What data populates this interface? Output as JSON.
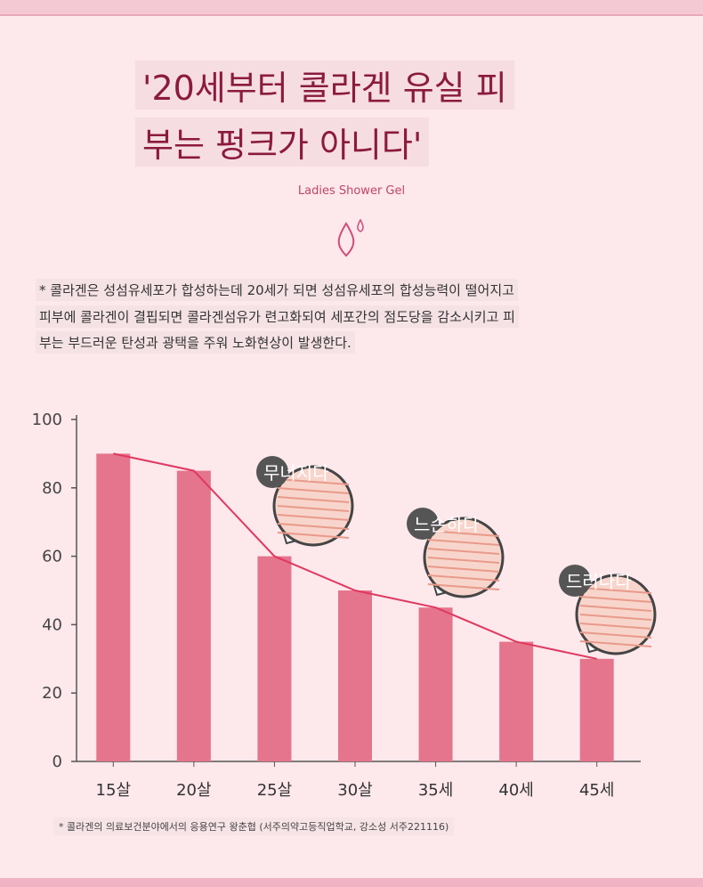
{
  "header": {
    "title_lines": [
      "'20세부터 콜라겐 유실 피",
      "부는 펑크가 아니다'"
    ],
    "subtitle": "Ladies Shower Gel"
  },
  "description_lines": [
    "* 콜라겐은 성섬유세포가 합성하는데 20세가 되면 성섬유세포의 합성능력이 떨어지고",
    "피부에 콜라겐이 결핍되면 콜라겐섬유가 련고화되여 세포간의 점도당을 감소시키고 피",
    "부는 부드러운 탄성과 광택을 주워 노화현상이 발생한다."
  ],
  "chart_data": {
    "type": "bar",
    "categories": [
      "15살",
      "20살",
      "25살",
      "30살",
      "35세",
      "40세",
      "45세"
    ],
    "values": [
      90,
      85,
      60,
      50,
      45,
      35,
      30
    ],
    "color": "#e5758c",
    "line_color": "#e0395f",
    "ylim": [
      0,
      100
    ],
    "yticks": [
      0,
      20,
      40,
      60,
      80,
      100
    ],
    "annotations": [
      "무너지다",
      "느슨하다",
      "드러나다"
    ]
  },
  "footnote": "* 콜라겐의 의료보건분야에서의 응용연구 왕춘협 (서주의약고등직업학교, 강소성 서주221116)"
}
